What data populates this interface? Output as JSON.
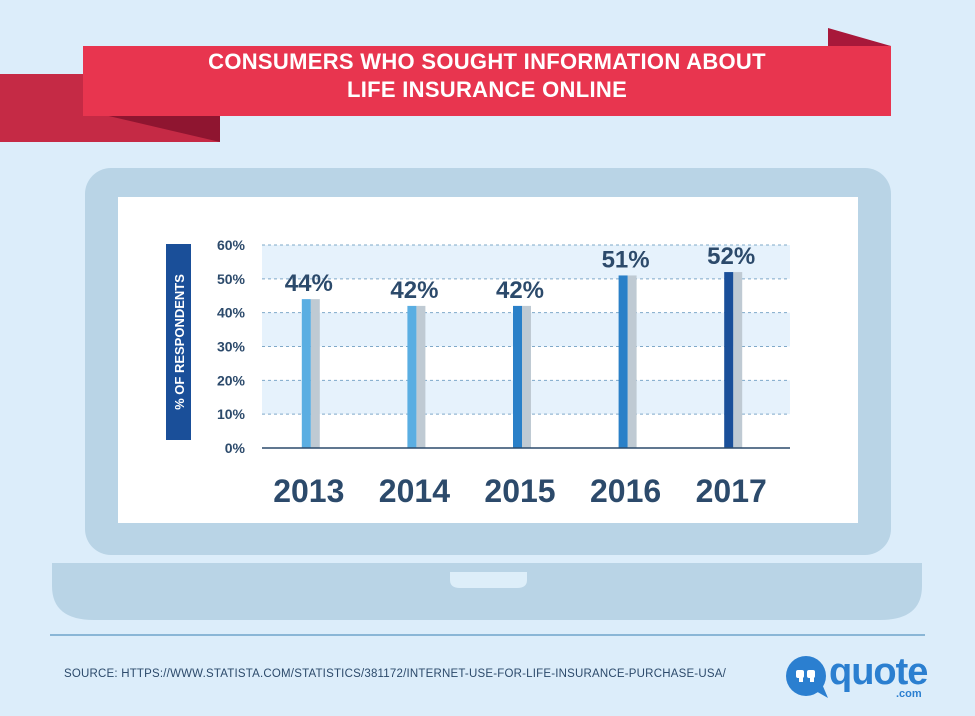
{
  "banner": {
    "title_line1": "CONSUMERS WHO SOUGHT INFORMATION ABOUT",
    "title_line2": "LIFE INSURANCE ONLINE"
  },
  "colors": {
    "background": "#dcedfa",
    "banner_red": "#e8354f",
    "banner_dark": "#9c1530",
    "laptop_frame": "#b9d4e6",
    "screen": "#ffffff",
    "band": "#e6f2fc",
    "bar_light": "#5aaee2",
    "bar_mid": "#2a80c8",
    "bar_dark": "#1a4f99",
    "bar_shadow": "#bfcad3",
    "axis_text": "#2c4a6b",
    "ylabel_bg": "#1a4f99"
  },
  "chart_data": {
    "type": "bar",
    "title": "CONSUMERS WHO SOUGHT INFORMATION ABOUT LIFE INSURANCE ONLINE",
    "categories": [
      "2013",
      "2014",
      "2015",
      "2016",
      "2017"
    ],
    "values": [
      44,
      42,
      42,
      51,
      52
    ],
    "value_labels": [
      "44%",
      "42%",
      "42%",
      "51%",
      "52%"
    ],
    "ylabel": "% OF RESPONDENTS",
    "ylim": [
      0,
      60
    ],
    "yticks": [
      0,
      10,
      20,
      30,
      40,
      50,
      60
    ],
    "ytick_labels": [
      "0%",
      "10%",
      "20%",
      "30%",
      "40%",
      "50%",
      "60%"
    ],
    "grid": true,
    "legend": "none"
  },
  "footer": {
    "source": "SOURCE: HTTPS://WWW.STATISTA.COM/STATISTICS/381172/INTERNET-USE-FOR-LIFE-INSURANCE-PURCHASE-USA/"
  },
  "logo": {
    "word": "quote",
    "suffix": ".com",
    "icon": "speech-bubble-quote-icon"
  }
}
